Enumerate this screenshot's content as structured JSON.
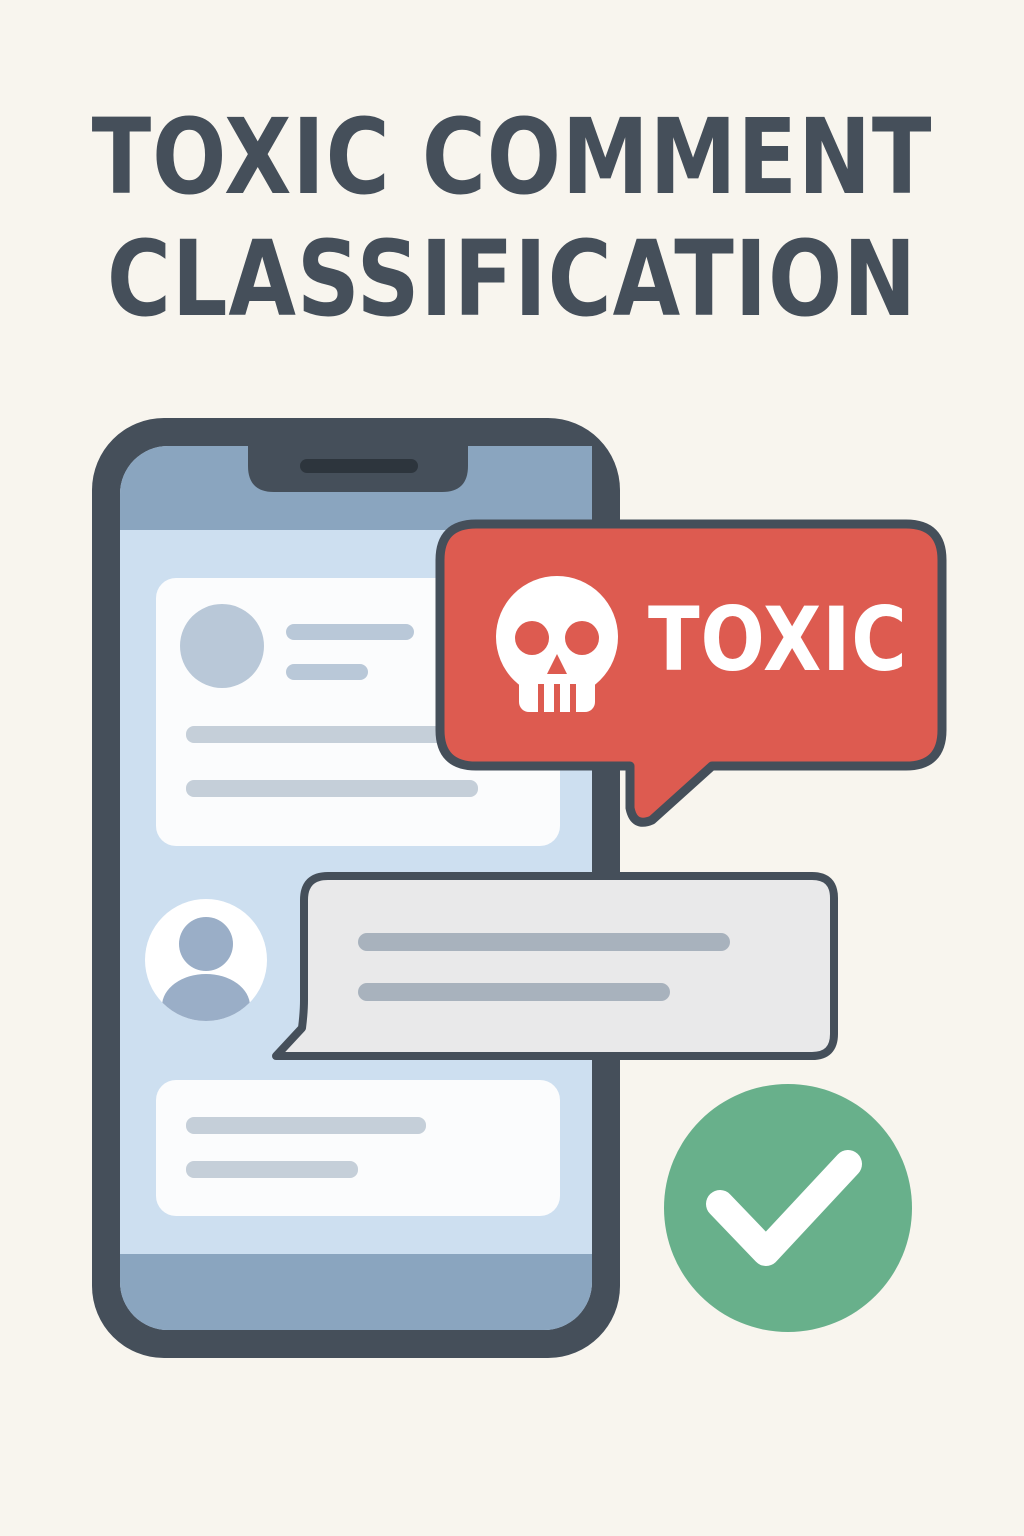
{
  "title": {
    "line1": "TOXIC COMMENT",
    "line2": "CLASSIFICATION"
  },
  "badge": {
    "label": "TOXIC",
    "icon": "skull-icon",
    "color": "#dd5b50"
  },
  "status": {
    "icon": "checkmark-icon",
    "color": "#68b08b"
  },
  "colors": {
    "background": "#f8f5ee",
    "outline": "#454f5a",
    "screen": "#cddff0",
    "phone_bars": "#8aa5bf"
  }
}
